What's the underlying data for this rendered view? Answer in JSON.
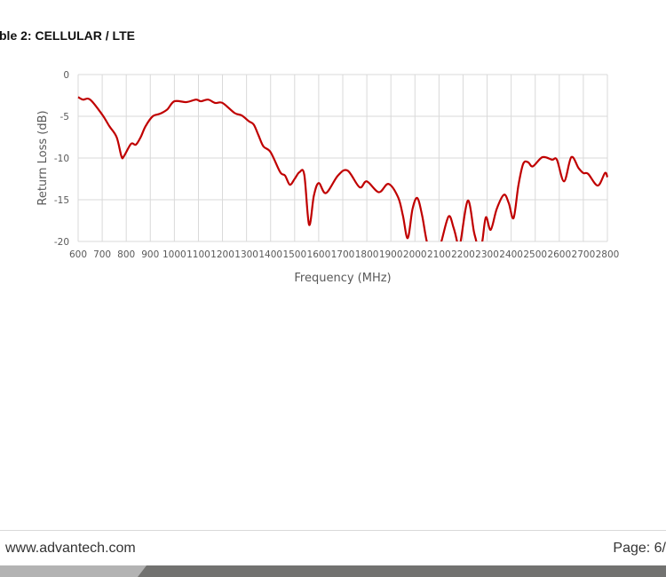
{
  "document": {
    "heading": "ble 2: CELLULAR / LTE",
    "footer_url": "www.advantech.com",
    "footer_page": "Page: 6/"
  },
  "chart_data": {
    "type": "line",
    "title": "",
    "xlabel": "Frequency (MHz)",
    "ylabel": "Return Loss (dB)",
    "xlim": [
      600,
      2800
    ],
    "ylim": [
      -20,
      0
    ],
    "xticks": [
      "600",
      "700",
      "800",
      "900",
      "1000",
      "1100",
      "1200",
      "1300",
      "1400",
      "1500",
      "1600",
      "1700",
      "1800",
      "1900",
      "2000",
      "2100",
      "2200",
      "2300",
      "2400",
      "2500",
      "2600",
      "2700",
      "2800"
    ],
    "yticks": [
      "0",
      "-5",
      "-10",
      "-15",
      "-20"
    ],
    "grid": true,
    "line_color": "#c00000",
    "series": [
      {
        "x": [
          600,
          620,
          650,
          700,
          730,
          760,
          780,
          790,
          820,
          840,
          860,
          880,
          910,
          940,
          970,
          1000,
          1050,
          1090,
          1110,
          1140,
          1170,
          1200,
          1250,
          1280,
          1310,
          1330,
          1350,
          1370,
          1400,
          1440,
          1460,
          1480,
          1500,
          1520,
          1540,
          1560,
          1580,
          1600,
          1630,
          1680,
          1720,
          1770,
          1800,
          1850,
          1890,
          1930,
          1950,
          1970,
          1990,
          2010,
          2030,
          2050,
          2080,
          2110,
          2140,
          2160,
          2175,
          2180,
          2190,
          2220,
          2245,
          2255,
          2265,
          2280,
          2295,
          2315,
          2340,
          2370,
          2390,
          2410,
          2430,
          2450,
          2470,
          2490,
          2530,
          2570,
          2590,
          2620,
          2650,
          2680,
          2700,
          2720,
          2760,
          2790,
          2800
        ],
        "y": [
          -2.7,
          -3.0,
          -3.0,
          -4.8,
          -6.2,
          -7.5,
          -9.8,
          -9.8,
          -8.3,
          -8.4,
          -7.5,
          -6.2,
          -5.0,
          -4.7,
          -4.2,
          -3.2,
          -3.3,
          -3.0,
          -3.2,
          -3.0,
          -3.4,
          -3.4,
          -4.6,
          -4.9,
          -5.6,
          -6.0,
          -7.3,
          -8.6,
          -9.3,
          -11.7,
          -12.1,
          -13.2,
          -12.5,
          -11.7,
          -12.0,
          -18.0,
          -14.5,
          -13.0,
          -14.2,
          -12.1,
          -11.5,
          -13.5,
          -12.8,
          -14.1,
          -13.1,
          -14.7,
          -16.9,
          -19.6,
          -16.1,
          -14.8,
          -16.9,
          -20.1,
          -23,
          -20.0,
          -17.0,
          -18.3,
          -20.0,
          -21,
          -20.0,
          -15.1,
          -18.8,
          -20.0,
          -22,
          -20.0,
          -17.1,
          -18.6,
          -16.1,
          -14.4,
          -15.4,
          -17.2,
          -13.3,
          -10.7,
          -10.5,
          -11.0,
          -9.9,
          -10.2,
          -10.2,
          -12.8,
          -9.9,
          -11.2,
          -11.8,
          -11.9,
          -13.3,
          -11.8,
          -12.3
        ]
      }
    ]
  }
}
